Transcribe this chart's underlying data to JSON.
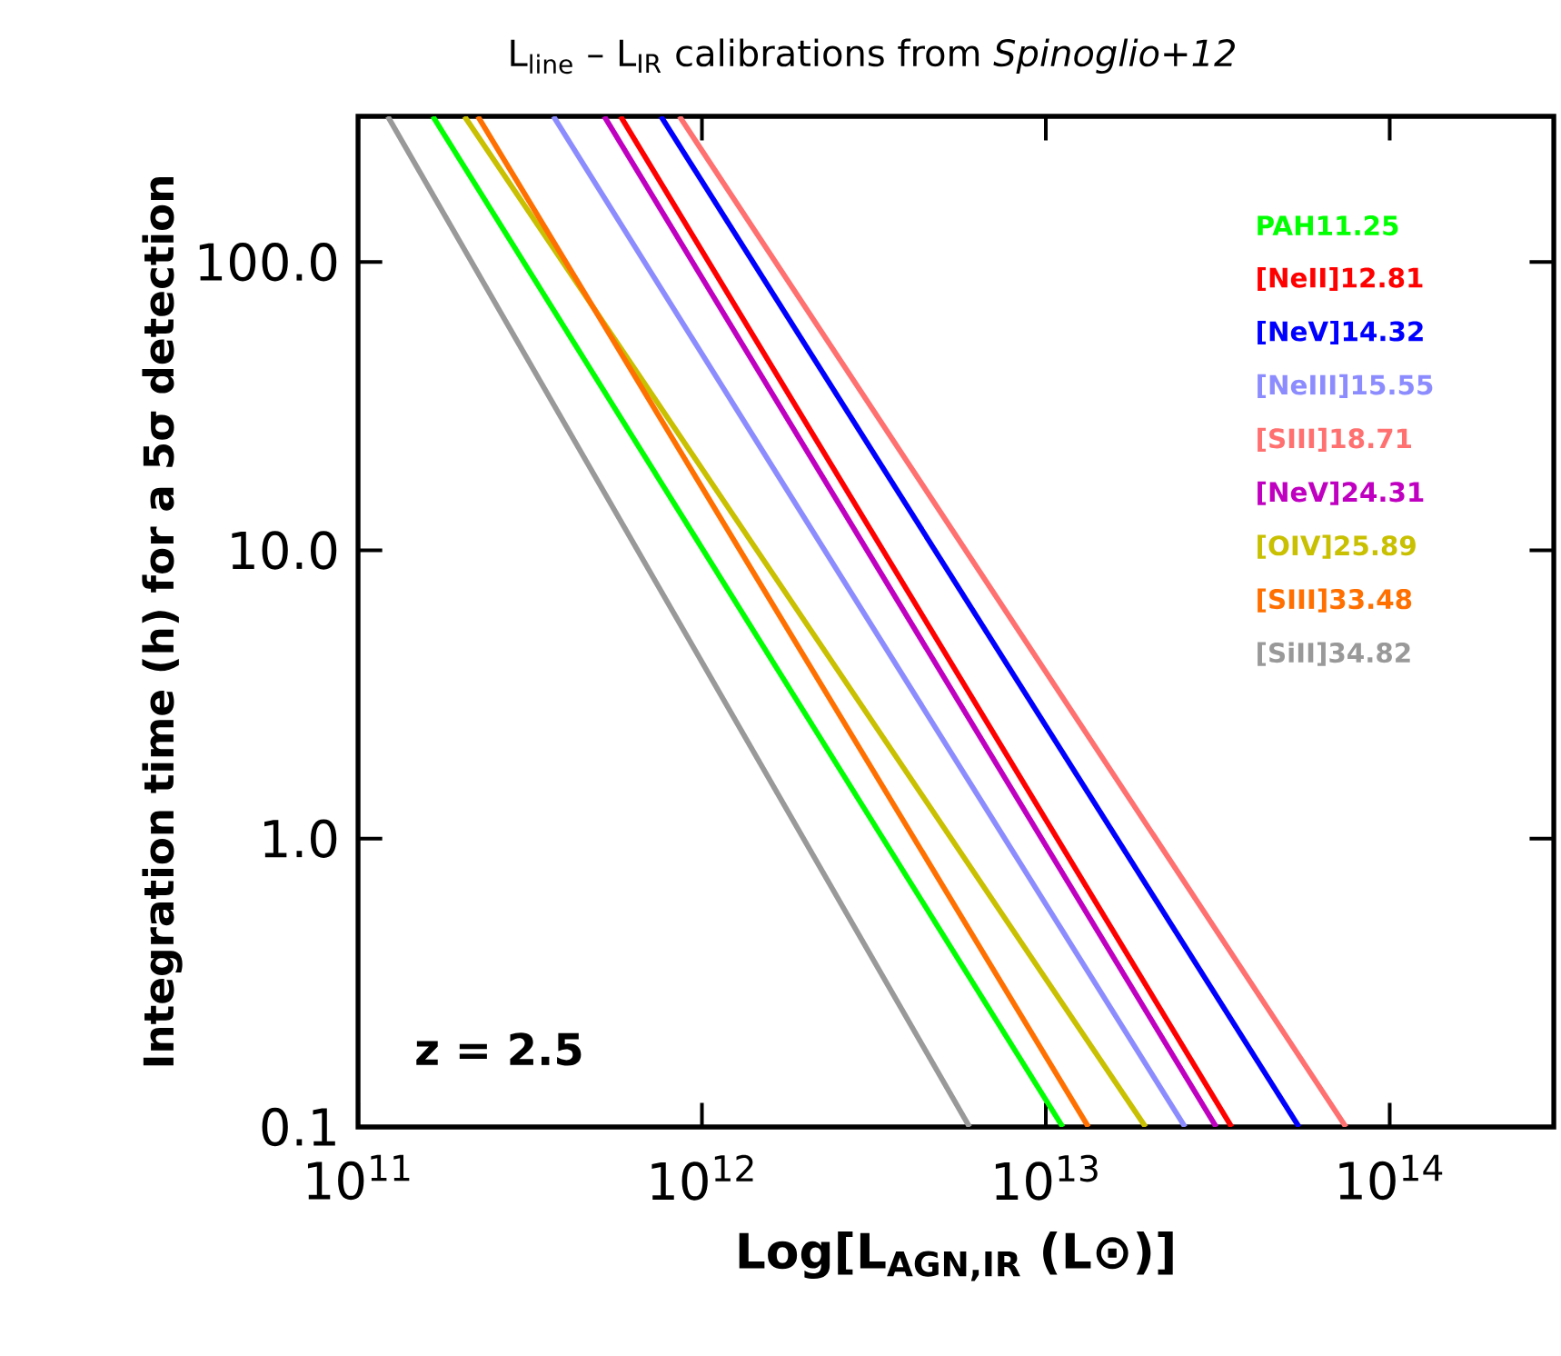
{
  "chart_data": {
    "type": "line",
    "title": "L$_{line}$ – L$_{IR}$   calibrations from *Spinoglio+12*",
    "xlabel": "Log[L$_{AGN,IR}$ (L⊙)]",
    "ylabel": "Integration time (h) for a 5σ detection",
    "log": "xy",
    "legend": "top right",
    "xlim": [
      100000000000.0,
      300000000000000.0
    ],
    "ylim": [
      0.1,
      320
    ],
    "xticks": [
      {
        "value": 100000000000.0,
        "label": "10$^{11}$"
      },
      {
        "value": 1000000000000.0,
        "label": "10$^{12}$"
      },
      {
        "value": 10000000000000.0,
        "label": "10$^{13}$"
      },
      {
        "value": 100000000000000.0,
        "label": "10$^{14}$"
      }
    ],
    "yticks": [
      {
        "value": 0.1,
        "label": "0.1"
      },
      {
        "value": 1,
        "label": "1.0"
      },
      {
        "value": 10,
        "label": "10.0"
      },
      {
        "value": 100,
        "label": "100.0"
      }
    ],
    "annotations": [
      "z = 2.5"
    ],
    "series": [
      {
        "name": "PAH11.25",
        "color": "#00ff00",
        "x": [
          165000000000.0,
          11200000000000.0
        ],
        "values": [
          320,
          0.1
        ]
      },
      {
        "name": "[NeII]12.81",
        "color": "#ff0000",
        "x": [
          580000000000.0,
          34700000000000.0
        ],
        "values": [
          320,
          0.1
        ]
      },
      {
        "name": "[NeV]14.32",
        "color": "#0000ff",
        "x": [
          760000000000.0,
          54500000000000.0
        ],
        "values": [
          320,
          0.1
        ]
      },
      {
        "name": "[NeIII]15.55",
        "color": "#8c8cff",
        "x": [
          370000000000.0,
          25400000000000.0
        ],
        "values": [
          320,
          0.1
        ]
      },
      {
        "name": "[SIII]18.71",
        "color": "#ff7070",
        "x": [
          860000000000.0,
          74600000000000.0
        ],
        "values": [
          320,
          0.1
        ]
      },
      {
        "name": "[NeV]24.31",
        "color": "#c000c0",
        "x": [
          520000000000.0,
          31300000000000.0
        ],
        "values": [
          320,
          0.1
        ]
      },
      {
        "name": "[OIV]25.89",
        "color": "#c8c000",
        "x": [
          204000000000.0,
          19500000000000.0
        ],
        "values": [
          320,
          0.1
        ]
      },
      {
        "name": "[SIII]33.48",
        "color": "#ff7000",
        "x": [
          223000000000.0,
          13300000000000.0
        ],
        "values": [
          320,
          0.1
        ]
      },
      {
        "name": "[SiII]34.82",
        "color": "#999999",
        "x": [
          122000000000.0,
          6000000000000.0
        ],
        "values": [
          320,
          0.1
        ]
      }
    ]
  }
}
